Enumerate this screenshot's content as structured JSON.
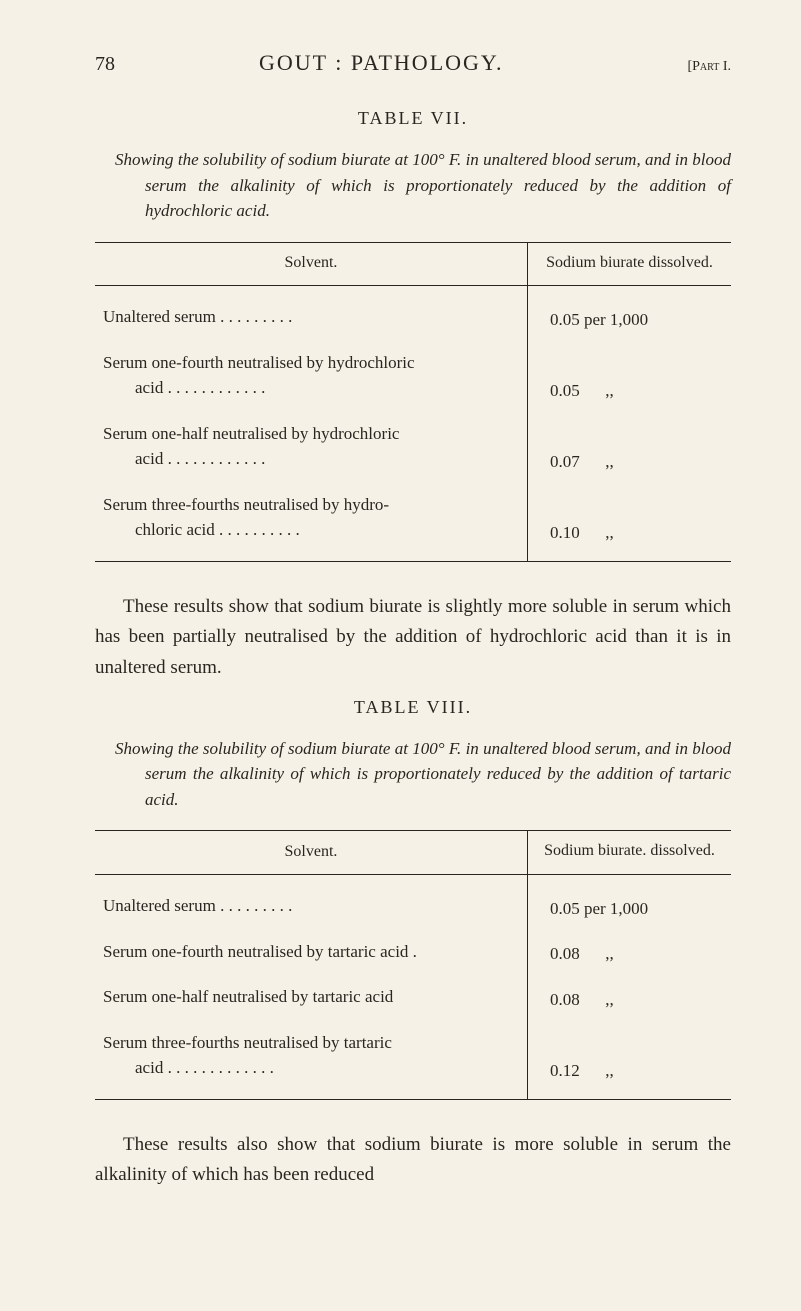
{
  "header": {
    "page_number": "78",
    "title": "GOUT : PATHOLOGY.",
    "part": "[Part I."
  },
  "table7": {
    "label": "TABLE VII.",
    "caption": "Showing the solubility of sodium biurate at 100° F. in unaltered blood serum, and in blood serum the alkalinity of which is proportionately reduced by the addition of hydrochloric acid.",
    "col1": "Solvent.",
    "col2": "Sodium biurate dissolved.",
    "rows": [
      {
        "solvent": "Unaltered serum  . . . . . . . . .",
        "value": "0.05 per 1,000"
      },
      {
        "solvent": "Serum one-fourth neutralised by hydrochloric",
        "solvent2": "acid  . . . . . . . . . . . .",
        "value": "0.05      ,,"
      },
      {
        "solvent": "Serum one-half neutralised by hydrochloric",
        "solvent2": "acid  . . . . . . . . . . . .",
        "value": "0.07      ,,"
      },
      {
        "solvent": "Serum three-fourths neutralised by hydro-",
        "solvent2": "chloric acid  . . . . . . . . . .",
        "value": "0.10      ,,"
      }
    ]
  },
  "para1": "These results show that sodium biurate is slightly more soluble in serum which has been partially neutralised by the addition of hydrochloric acid than it is in unaltered serum.",
  "table8": {
    "label": "TABLE VIII.",
    "caption": "Showing the solubility of sodium biurate at 100° F. in unaltered blood serum, and in blood serum the alkalinity of which is proportionately reduced by the addition of tartaric acid.",
    "col1": "Solvent.",
    "col2": "Sodium biurate. dissolved.",
    "rows": [
      {
        "solvent": "Unaltered serum  . . . . . . . . .",
        "value": "0.05 per 1,000"
      },
      {
        "solvent": "Serum one-fourth neutralised by tartaric acid .",
        "value": "0.08      ,,"
      },
      {
        "solvent": "Serum one-half neutralised by tartaric acid",
        "value": "0.08      ,,"
      },
      {
        "solvent": "Serum three-fourths neutralised by tartaric",
        "solvent2": "acid . . . . . . . . . . . . .",
        "value": "0.12      ,,"
      }
    ]
  },
  "para2": "These results also show that sodium biurate is more soluble in serum the alkalinity of which has been reduced"
}
